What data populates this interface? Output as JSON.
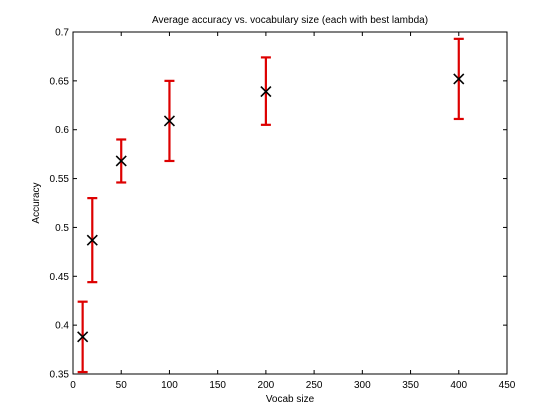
{
  "chart_data": {
    "type": "scatter",
    "title": "Average accuracy vs. vocabulary size (each with best lambda)",
    "xlabel": "Vocab size",
    "ylabel": "Accuracy",
    "xlim": [
      0,
      450
    ],
    "ylim": [
      0.35,
      0.7
    ],
    "xticks": [
      "0",
      "50",
      "100",
      "150",
      "200",
      "250",
      "300",
      "350",
      "400",
      "450"
    ],
    "yticks": [
      "0.35",
      "0.4",
      "0.45",
      "0.5",
      "0.55",
      "0.6",
      "0.65",
      "0.7"
    ],
    "grid": false,
    "legend": "none",
    "marker_color": "#000000",
    "errorbar_color": "#dd0000",
    "points": [
      {
        "x": 10,
        "y": 0.388,
        "y_low": 0.352,
        "y_high": 0.424
      },
      {
        "x": 20,
        "y": 0.487,
        "y_low": 0.444,
        "y_high": 0.53
      },
      {
        "x": 50,
        "y": 0.568,
        "y_low": 0.546,
        "y_high": 0.59
      },
      {
        "x": 100,
        "y": 0.609,
        "y_low": 0.568,
        "y_high": 0.65
      },
      {
        "x": 200,
        "y": 0.639,
        "y_low": 0.605,
        "y_high": 0.674
      },
      {
        "x": 400,
        "y": 0.652,
        "y_low": 0.611,
        "y_high": 0.693
      }
    ]
  }
}
